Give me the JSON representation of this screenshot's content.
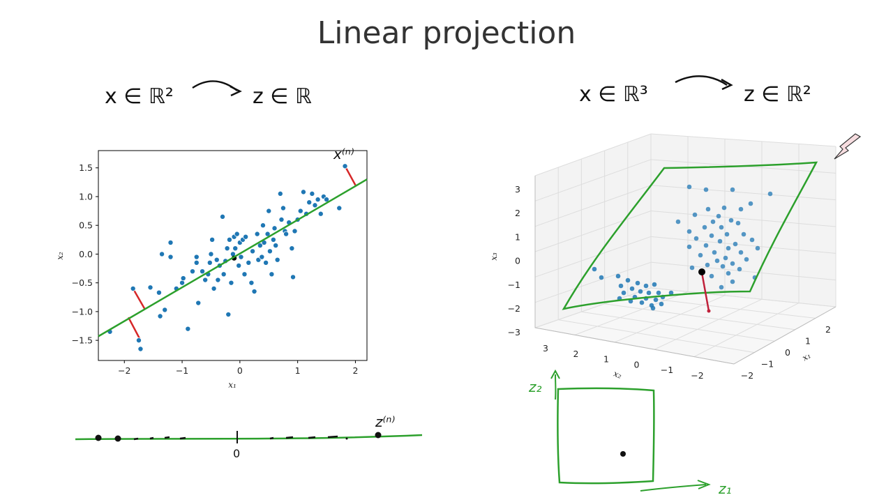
{
  "slide": {
    "title": "Linear projection"
  },
  "left": {
    "mapping": {
      "from": "x ∈ ℝ²",
      "to": "z ∈ ℝ"
    },
    "point_label": "x⁽ⁿ⁾",
    "latent_label": "z⁽ⁿ⁾",
    "origin_label": "0"
  },
  "right": {
    "mapping": {
      "from": "x ∈ ℝ³",
      "to": "z ∈ ℝ²"
    },
    "latent_axes": {
      "z1": "z₁",
      "z2": "z₂"
    }
  },
  "colors": {
    "points": "#1f77b4",
    "line": "#2ca02c",
    "residual": "#d62728",
    "ink": "#111111"
  },
  "chart_data": [
    {
      "type": "scatter",
      "title": "",
      "xlabel": "x₁",
      "ylabel": "x₂",
      "xlim": [
        -2.45,
        2.2
      ],
      "ylim": [
        -1.85,
        1.8
      ],
      "xticks": [
        -2,
        -1,
        0,
        1,
        2
      ],
      "yticks": [
        -1.5,
        -1.0,
        -0.5,
        0.0,
        0.5,
        1.0,
        1.5
      ],
      "ytick_labels": [
        "−1.5",
        "−1.0",
        "−0.5",
        "0.0",
        "0.5",
        "1.0",
        "1.5"
      ],
      "xtick_labels": [
        "−2",
        "−1",
        "0",
        "1",
        "2"
      ],
      "points": [
        [
          -2.25,
          -1.35
        ],
        [
          -1.72,
          -1.65
        ],
        [
          -1.75,
          -1.5
        ],
        [
          -1.85,
          -0.6
        ],
        [
          -1.55,
          -0.58
        ],
        [
          -1.4,
          -0.67
        ],
        [
          -1.38,
          -1.08
        ],
        [
          -1.3,
          -0.97
        ],
        [
          -1.35,
          0.0
        ],
        [
          -1.2,
          -0.05
        ],
        [
          -1.2,
          0.2
        ],
        [
          -1.1,
          -0.6
        ],
        [
          -1.0,
          -0.5
        ],
        [
          -0.98,
          -0.42
        ],
        [
          -0.9,
          -1.3
        ],
        [
          -0.82,
          -0.3
        ],
        [
          -0.75,
          -0.15
        ],
        [
          -0.75,
          -0.05
        ],
        [
          -0.72,
          -0.85
        ],
        [
          -0.65,
          -0.3
        ],
        [
          -0.6,
          -0.45
        ],
        [
          -0.55,
          -0.35
        ],
        [
          -0.52,
          -0.15
        ],
        [
          -0.5,
          0.0
        ],
        [
          -0.48,
          0.25
        ],
        [
          -0.45,
          -0.6
        ],
        [
          -0.4,
          -0.1
        ],
        [
          -0.38,
          -0.45
        ],
        [
          -0.35,
          -0.2
        ],
        [
          -0.3,
          0.65
        ],
        [
          -0.28,
          -0.35
        ],
        [
          -0.25,
          -0.12
        ],
        [
          -0.22,
          0.1
        ],
        [
          -0.2,
          -1.05
        ],
        [
          -0.18,
          0.25
        ],
        [
          -0.15,
          -0.5
        ],
        [
          -0.12,
          0.0
        ],
        [
          -0.1,
          0.3
        ],
        [
          -0.08,
          0.1
        ],
        [
          -0.05,
          0.35
        ],
        [
          -0.02,
          -0.2
        ],
        [
          0.0,
          0.2
        ],
        [
          0.02,
          -0.05
        ],
        [
          0.05,
          0.25
        ],
        [
          0.08,
          -0.35
        ],
        [
          0.1,
          0.3
        ],
        [
          0.15,
          -0.15
        ],
        [
          0.2,
          -0.5
        ],
        [
          0.22,
          0.05
        ],
        [
          0.25,
          -0.65
        ],
        [
          0.3,
          0.35
        ],
        [
          0.32,
          -0.1
        ],
        [
          0.35,
          0.15
        ],
        [
          0.38,
          -0.05
        ],
        [
          0.4,
          0.5
        ],
        [
          0.42,
          0.2
        ],
        [
          0.45,
          -0.15
        ],
        [
          0.48,
          0.35
        ],
        [
          0.5,
          0.75
        ],
        [
          0.52,
          0.05
        ],
        [
          0.55,
          -0.35
        ],
        [
          0.58,
          0.25
        ],
        [
          0.6,
          0.45
        ],
        [
          0.62,
          0.15
        ],
        [
          0.65,
          -0.1
        ],
        [
          0.7,
          1.05
        ],
        [
          0.72,
          0.6
        ],
        [
          0.75,
          0.8
        ],
        [
          0.78,
          0.4
        ],
        [
          0.8,
          0.35
        ],
        [
          0.85,
          0.55
        ],
        [
          0.9,
          0.1
        ],
        [
          0.92,
          -0.4
        ],
        [
          0.95,
          0.4
        ],
        [
          1.0,
          0.6
        ],
        [
          1.05,
          0.75
        ],
        [
          1.1,
          1.08
        ],
        [
          1.15,
          0.7
        ],
        [
          1.2,
          0.9
        ],
        [
          1.25,
          1.05
        ],
        [
          1.3,
          0.85
        ],
        [
          1.35,
          0.95
        ],
        [
          1.4,
          0.7
        ],
        [
          1.45,
          1.0
        ],
        [
          1.5,
          0.95
        ],
        [
          1.72,
          0.8
        ],
        [
          1.82,
          1.53
        ]
      ],
      "projected_point": [
        -0.1,
        -0.07
      ],
      "fit_line": {
        "x": [
          -2.45,
          2.2
        ],
        "y": [
          -1.43,
          1.3
        ]
      },
      "residuals": [
        {
          "from": [
            -1.85,
            -0.6
          ],
          "to": [
            -1.65,
            -0.95
          ]
        },
        {
          "from": [
            -1.72,
            -1.5
          ],
          "to": [
            -1.93,
            -1.1
          ]
        },
        {
          "from": [
            1.82,
            1.53
          ],
          "to": [
            2.0,
            1.2
          ]
        }
      ]
    },
    {
      "type": "scatter",
      "title": "",
      "projection": "3d",
      "xlabel": "x₁",
      "ylabel": "x₂",
      "zlabel": "x₃",
      "x1_ticks": [
        "2",
        "1",
        "0",
        "−1",
        "−2"
      ],
      "x2_ticks": [
        "3",
        "2",
        "1",
        "0",
        "−1",
        "−2"
      ],
      "x3_ticks": [
        "3",
        "2",
        "1",
        "0",
        "−1",
        "−2",
        "−3"
      ],
      "zlim": [
        -3,
        3.4
      ]
    }
  ]
}
